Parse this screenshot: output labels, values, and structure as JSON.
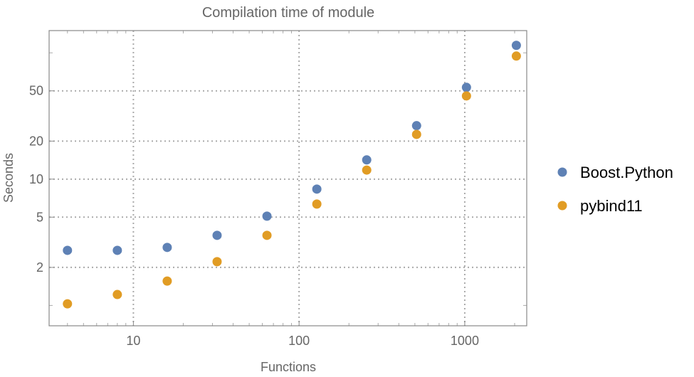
{
  "chart_data": {
    "type": "scatter",
    "title": "Compilation time of module",
    "xlabel": "Functions",
    "ylabel": "Seconds",
    "xscale": "log",
    "yscale": "log",
    "xlim": [
      3.1,
      2366
    ],
    "ylim": [
      0.69,
      150
    ],
    "x_ticks": [
      10,
      100,
      1000
    ],
    "x_tick_labels": [
      "10",
      "100",
      "1000"
    ],
    "y_ticks": [
      2,
      5,
      10,
      20,
      50
    ],
    "y_tick_labels": [
      "2",
      "5",
      "10",
      "20",
      "50"
    ],
    "grid": true,
    "legend_position": "right",
    "x": [
      4,
      8,
      16,
      32,
      64,
      128,
      256,
      512,
      1024,
      2048
    ],
    "series": [
      {
        "name": "Boost.Python",
        "color": "#5e81b5",
        "values": [
          2.73,
          2.73,
          2.88,
          3.59,
          5.09,
          8.34,
          14.2,
          26.5,
          53.3,
          114.6
        ]
      },
      {
        "name": "pybind11",
        "color": "#e19c24",
        "values": [
          1.03,
          1.22,
          1.56,
          2.22,
          3.59,
          6.35,
          11.8,
          22.6,
          45.6,
          94.3
        ]
      }
    ]
  }
}
